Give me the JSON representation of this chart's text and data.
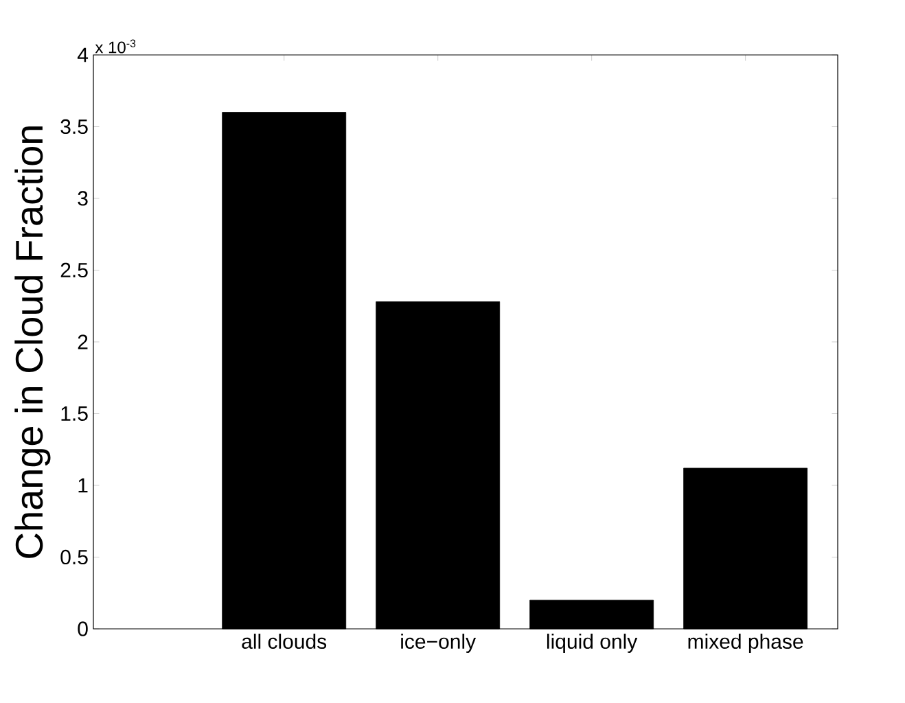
{
  "chart_data": {
    "type": "bar",
    "ylabel": "Change in Cloud Fraction",
    "categories": [
      "all clouds",
      "ice−only",
      "liquid only",
      "mixed phase"
    ],
    "values": [
      3.6,
      2.28,
      0.2,
      1.12
    ],
    "color": "#000000",
    "ylim": [
      0,
      4
    ],
    "yticks": [
      0,
      0.5,
      1,
      1.5,
      2,
      2.5,
      3,
      3.5,
      4
    ],
    "annotations": [
      "x 10$^{-3}$"
    ]
  }
}
